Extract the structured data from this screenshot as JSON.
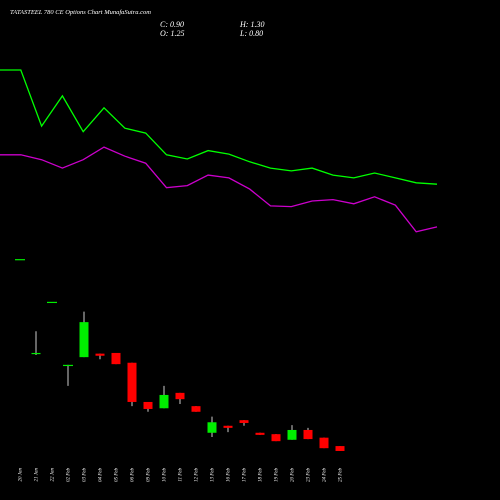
{
  "chart_data": [
    {
      "type": "line",
      "title": "TATASTEEL 780 CE Options Chart MunafaSutra.com",
      "categories": [
        null,
        null,
        null,
        null,
        null,
        null,
        null,
        null,
        null,
        null,
        null,
        null,
        null,
        null,
        null,
        null,
        null,
        null,
        null,
        null,
        null,
        null
      ],
      "series": [
        {
          "color": "#00ff00",
          "values": [
            6.34,
            6.34,
            5.54,
            5.97,
            5.46,
            5.8,
            5.51,
            5.44,
            5.13,
            5.07,
            5.19,
            5.14,
            5.03,
            4.94,
            4.9,
            4.94,
            4.84,
            4.8,
            4.87,
            4.8,
            4.73,
            4.71
          ]
        },
        {
          "color": "#cc00cc",
          "values": [
            5.13,
            5.13,
            5.06,
            4.94,
            5.06,
            5.24,
            5.11,
            5.01,
            4.66,
            4.69,
            4.84,
            4.8,
            4.64,
            4.4,
            4.39,
            4.47,
            4.49,
            4.43,
            4.53,
            4.41,
            4.03,
            4.1
          ]
        }
      ],
      "ylim": [
        0.2,
        7.34
      ]
    },
    {
      "type": "candlestick",
      "header": [
        "C: 0.90",
        "H: 1.30",
        "O: 1.25",
        "L: 0.80"
      ],
      "categories": [
        "20 Jan",
        "21 Jan",
        "22 Jan",
        "02 Feb",
        "03 Feb",
        "04 Feb",
        "05 Feb",
        "06 Feb",
        "09 Feb",
        "10 Feb",
        "11 Feb",
        "12 Feb",
        "13 Feb",
        "16 Feb",
        "17 Feb",
        "18 Feb",
        "19 Feb",
        "20 Feb",
        "23 Feb",
        "24 Feb",
        "25 Feb"
      ],
      "open": [
        3.64,
        2.29,
        3.03,
        2.13,
        2.24,
        2.29,
        2.3,
        2.16,
        1.6,
        1.51,
        1.73,
        1.54,
        1.16,
        1.26,
        1.34,
        1.16,
        1.14,
        1.06,
        1.2,
        1.09,
        0.97
      ],
      "high": [
        3.64,
        2.61,
        3.03,
        2.13,
        2.89,
        2.29,
        2.3,
        2.16,
        1.6,
        1.83,
        1.73,
        1.54,
        1.39,
        1.26,
        1.34,
        1.16,
        1.14,
        1.27,
        1.23,
        1.09,
        0.97
      ],
      "low": [
        3.64,
        2.27,
        3.03,
        1.83,
        2.24,
        2.21,
        2.14,
        1.54,
        1.46,
        1.51,
        1.57,
        1.46,
        1.1,
        1.17,
        1.26,
        1.13,
        1.04,
        1.06,
        1.07,
        0.94,
        0.9
      ],
      "close": [
        3.64,
        2.3,
        3.03,
        2.13,
        2.74,
        2.26,
        2.14,
        1.6,
        1.5,
        1.7,
        1.64,
        1.46,
        1.31,
        1.23,
        1.3,
        1.13,
        1.04,
        1.2,
        1.07,
        0.94,
        0.9
      ],
      "up_color": "#00ee00",
      "down_color": "#ff0000",
      "ylim": [
        0.2,
        7.34
      ]
    }
  ]
}
